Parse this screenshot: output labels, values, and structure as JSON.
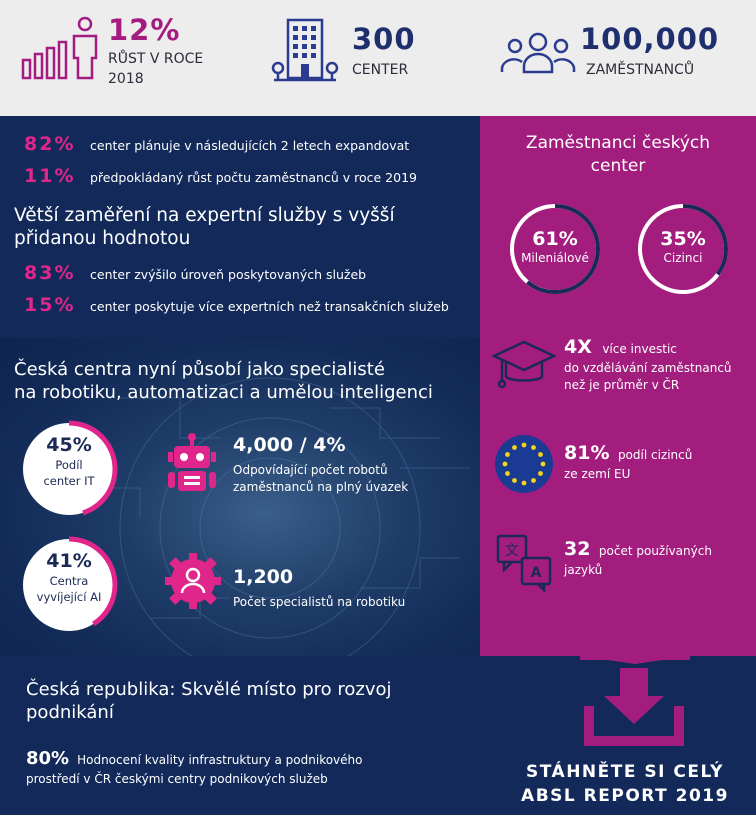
{
  "top": {
    "growth": {
      "value": "12%",
      "label_line1": "RŮST V ROCE",
      "label_line2": "2018",
      "icon": "growth-person-icon"
    },
    "centers": {
      "value": "300",
      "label": "CENTER",
      "icon": "office-building-icon"
    },
    "employees": {
      "value": "100,000",
      "label": "ZAMĚSTNANCŮ",
      "icon": "people-group-icon"
    }
  },
  "expansion": [
    {
      "pct": "82%",
      "text": "center plánuje v následujících 2 letech expandovat"
    },
    {
      "pct": "11%",
      "text": "předpokládaný růst počtu zaměstnanců v roce 2019"
    }
  ],
  "expert": {
    "title_line1": "Větší zaměření na expertní služby s vyšší",
    "title_line2": "přidanou hodnotou",
    "rows": [
      {
        "pct": "83%",
        "text": "center zvýšilo úroveň poskytovaných služeb"
      },
      {
        "pct": "15%",
        "text": "center poskytuje více expertních než transakčních služeb"
      }
    ]
  },
  "robotics": {
    "title_line1": "Česká centra nyní působí jako specialisté",
    "title_line2": "na robotiku, automatizaci a umělou inteligenci",
    "ring1": {
      "value": "45%",
      "label_line1": "Podíl",
      "label_line2": "center IT",
      "fraction": 0.45
    },
    "ring2": {
      "value": "41%",
      "label_line1": "Centra",
      "label_line2": "vyvíjející AI",
      "fraction": 0.41
    },
    "stat1": {
      "value": "4,000 / 4%",
      "line1": "Odpovídající počet robotů",
      "line2": "zaměstnanců na plný úvazek",
      "icon": "robot-icon"
    },
    "stat2": {
      "value": "1,200",
      "line1": "Počet specialistů na robotiku",
      "icon": "specialist-gear-icon"
    }
  },
  "employees_panel": {
    "title_line1": "Zaměstnanci českých",
    "title_line2": "center",
    "ring1": {
      "value": "61%",
      "label": "Mileniálové",
      "fraction": 0.61
    },
    "ring2": {
      "value": "35%",
      "label": "Cizinci",
      "fraction": 0.35
    },
    "invest": {
      "value": "4X",
      "line1": "více investic",
      "line2": "do vzdělávání zaměstnanců",
      "line3": "než je průměr v ČR",
      "icon": "graduation-cap-icon"
    },
    "foreign": {
      "value": "81%",
      "line1": "podíl cizinců",
      "line2": "ze zemí EU",
      "icon": "eu-flag-icon"
    },
    "languages": {
      "value": "32",
      "line1": "počet používaných",
      "line2": "jazyků",
      "icon": "translation-icon"
    }
  },
  "business": {
    "title_line1": "Česká republika: Skvělé místo pro rozvoj",
    "title_line2": "podnikání",
    "pct": "80%",
    "line1": "Hodnocení kvality infrastruktury a podnikového",
    "line2": "prostředí v ČR českými centry podnikových služeb"
  },
  "cta": {
    "line1": "STÁHNĚTE SI CELÝ",
    "line2": "ABSL REPORT 2019",
    "icon": "download-icon"
  },
  "colors": {
    "navy": "#12295a",
    "magenta": "#a31d7f",
    "pink": "#e0268a",
    "light": "#ededee"
  }
}
